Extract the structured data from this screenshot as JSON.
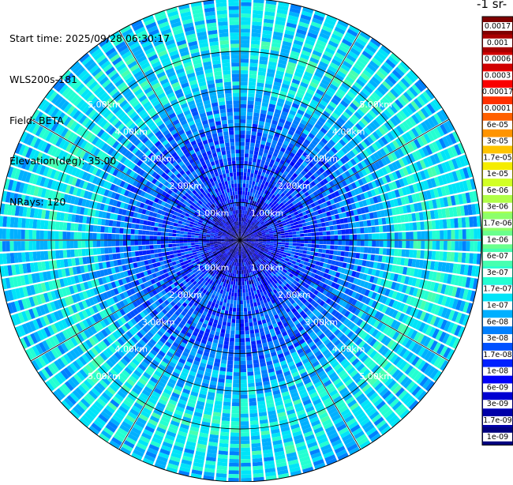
{
  "header": {
    "start_time": "Start time: 2025/09/28 06:30:17",
    "instrument": "WLS200s-181",
    "field": "Field: BETA",
    "elevation": "Elevation(deg): 35.00",
    "nrays": "NRays: 120"
  },
  "colorbar": {
    "title": "-1 sr-",
    "ticks": [
      "0.0017",
      "0.001",
      "0.0006",
      "0.0003",
      "0.00017",
      "0.0001",
      "6e-05",
      "3e-05",
      "1.7e-05",
      "1e-05",
      "6e-06",
      "3e-06",
      "1.7e-06",
      "1e-06",
      "6e-07",
      "3e-07",
      "1.7e-07",
      "1e-07",
      "6e-08",
      "3e-08",
      "1.7e-08",
      "1e-08",
      "6e-09",
      "3e-09",
      "1.7e-09",
      "1e-09"
    ],
    "colors": [
      "#7f0000",
      "#a80000",
      "#d10000",
      "#fa0000",
      "#ff3000",
      "#ff6000",
      "#ff9400",
      "#ffc400",
      "#f5ec00",
      "#d2ff24",
      "#b0ff47",
      "#8dff6a",
      "#6aff8d",
      "#47ffb0",
      "#24ffd2",
      "#00e4f8",
      "#00b0ff",
      "#0080ff",
      "#0050ff",
      "#0020ff",
      "#0000fa",
      "#0000d1",
      "#0000a8",
      "#00007f"
    ]
  },
  "chart_data": {
    "type": "ppi-polar",
    "field": "BETA",
    "elevation_deg": 35.0,
    "nrays": 120,
    "range_rings_km": [
      1.0,
      2.0,
      3.0,
      4.0,
      5.0
    ],
    "ring_labels": [
      "1.00km",
      "2.00km",
      "3.00km",
      "4.00km",
      "5.00km"
    ],
    "max_range_km": 6.4,
    "radial_profile": [
      {
        "r_km": 0.0,
        "beta": 2e-09
      },
      {
        "r_km": 1.0,
        "beta": 1.5e-08
      },
      {
        "r_km": 2.0,
        "beta": 2.5e-08
      },
      {
        "r_km": 3.0,
        "beta": 3.5e-08
      },
      {
        "r_km": 4.0,
        "beta": 1.2e-07
      },
      {
        "r_km": 5.0,
        "beta": 2e-07
      },
      {
        "r_km": 6.4,
        "beta": 1.2e-07
      }
    ]
  }
}
